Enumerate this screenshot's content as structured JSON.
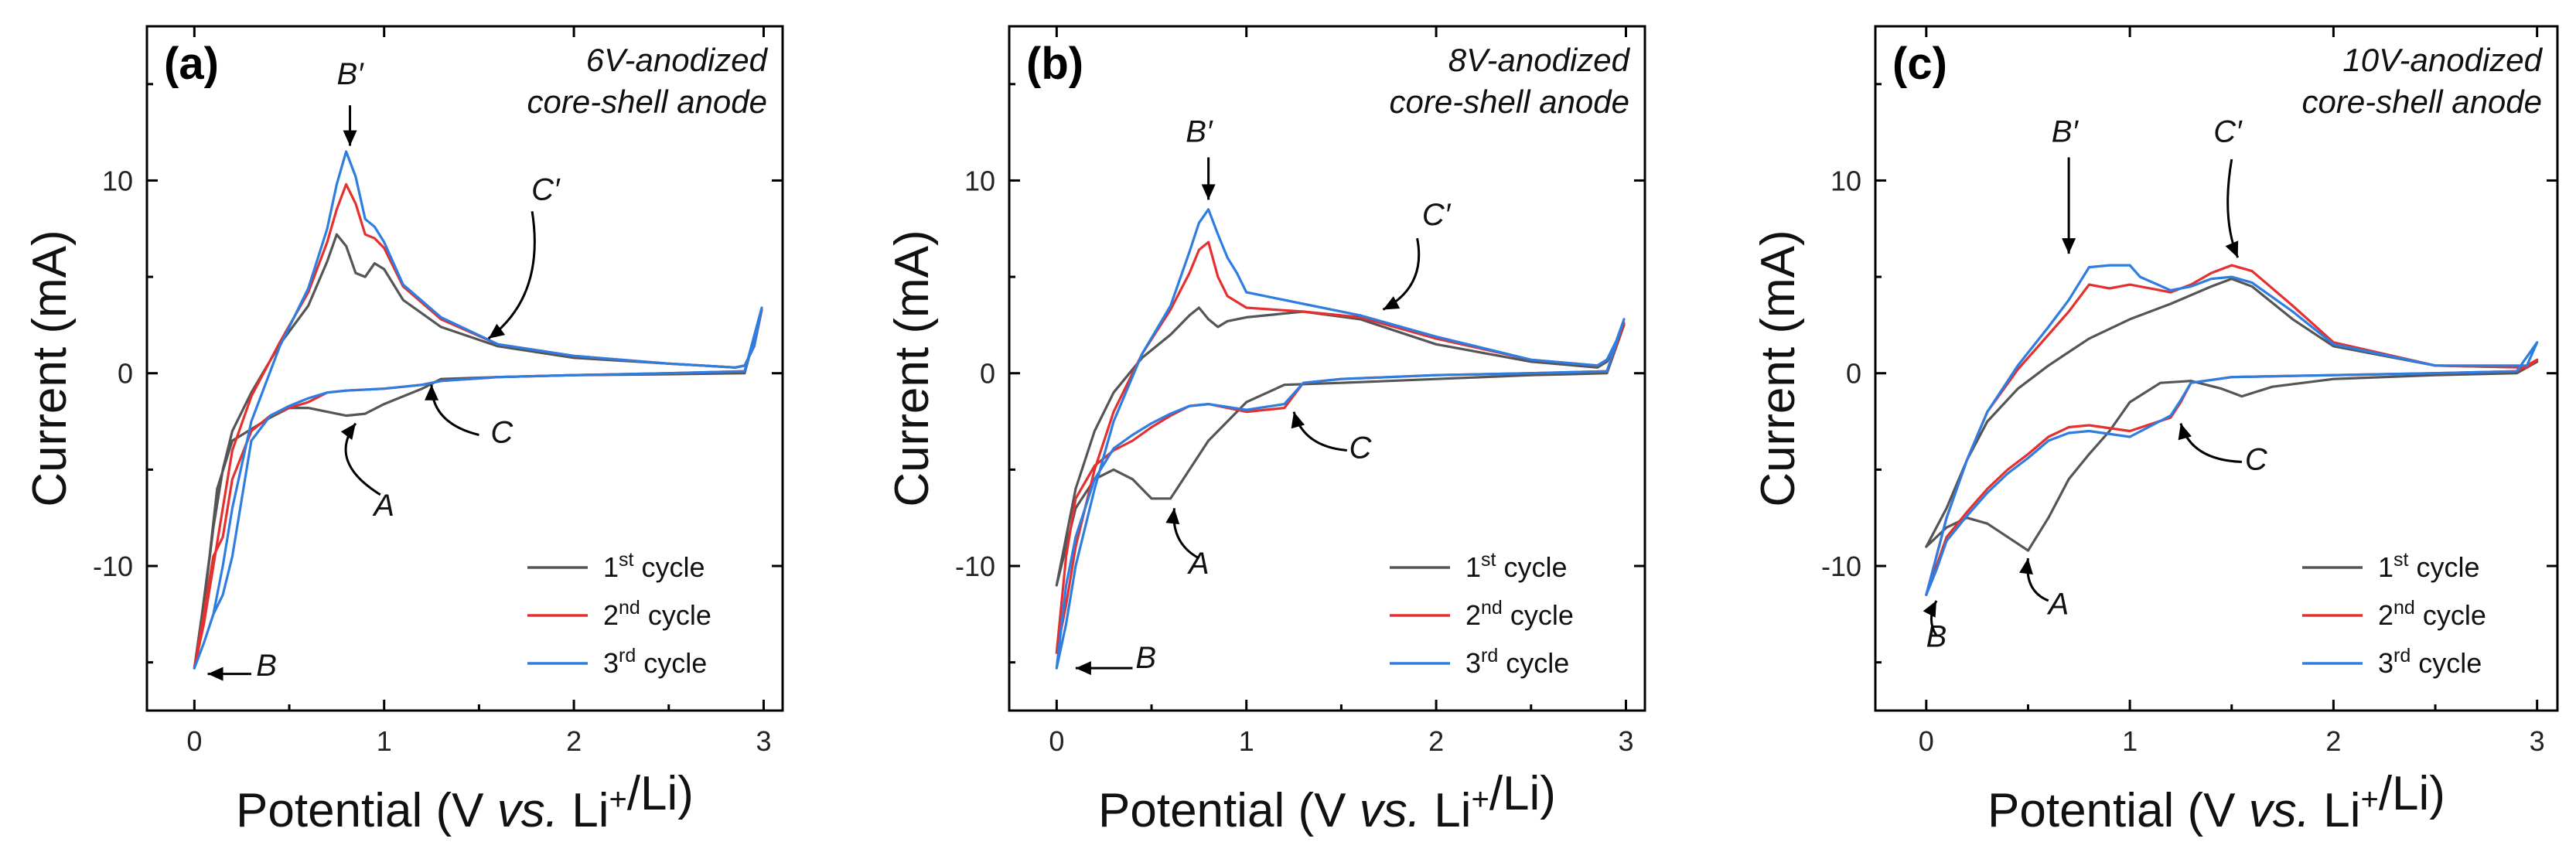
{
  "chart_data": [
    {
      "type": "line",
      "panel_label": "(a)",
      "title_lines": [
        "6V-anodized",
        "core-shell anode"
      ],
      "xlabel": "Potential (V vs. Li+/Li)",
      "ylabel": "Current (mA)",
      "xlim": [
        -0.25,
        3.1
      ],
      "ylim": [
        -17.5,
        18
      ],
      "xticks": [
        0,
        1,
        2,
        3
      ],
      "yticks": [
        -10,
        0,
        10
      ],
      "legend_position": "bottom-right",
      "series": [
        {
          "name": "1st cycle",
          "color": "#555555",
          "x": [
            0.0,
            0.05,
            0.1,
            0.15,
            0.2,
            0.3,
            0.45,
            0.6,
            0.7,
            0.75,
            0.8,
            0.85,
            0.9,
            0.95,
            1.0,
            1.1,
            1.3,
            1.6,
            2.0,
            2.5,
            2.85,
            2.9,
            2.95,
            2.99,
            2.9,
            2.5,
            2.0,
            1.6,
            1.3,
            1.2,
            1.0,
            0.9,
            0.8,
            0.7,
            0.6,
            0.5,
            0.4,
            0.3,
            0.2,
            0.12,
            0.08,
            0.04,
            0.0
          ],
          "y": [
            -15.3,
            -12,
            -8.0,
            -5.0,
            -3.0,
            -1.0,
            1.5,
            3.5,
            5.8,
            7.2,
            6.6,
            5.2,
            5.0,
            5.7,
            5.4,
            3.8,
            2.4,
            1.4,
            0.8,
            0.5,
            0.3,
            0.4,
            1.4,
            3.3,
            0.0,
            -0.05,
            -0.1,
            -0.2,
            -0.3,
            -0.8,
            -1.6,
            -2.1,
            -2.2,
            -2.0,
            -1.8,
            -1.8,
            -2.3,
            -2.9,
            -3.5,
            -6.0,
            -9.5,
            -12.5,
            -15.3
          ]
        },
        {
          "name": "2nd cycle",
          "color": "#e53030",
          "x": [
            0.0,
            0.05,
            0.1,
            0.15,
            0.2,
            0.3,
            0.45,
            0.6,
            0.7,
            0.75,
            0.8,
            0.85,
            0.9,
            0.95,
            1.0,
            1.1,
            1.3,
            1.6,
            2.0,
            2.5,
            2.85,
            2.9,
            2.95,
            2.99,
            2.9,
            2.5,
            2.0,
            1.6,
            1.3,
            1.2,
            1.0,
            0.8,
            0.7,
            0.6,
            0.5,
            0.4,
            0.3,
            0.2,
            0.15,
            0.1,
            0.05,
            0.0
          ],
          "y": [
            -15.3,
            -13,
            -10.0,
            -7.0,
            -4.0,
            -1.2,
            1.6,
            4.2,
            6.8,
            8.5,
            9.8,
            8.8,
            7.2,
            7.0,
            6.5,
            4.5,
            2.8,
            1.5,
            0.9,
            0.5,
            0.3,
            0.4,
            1.4,
            3.3,
            0.1,
            0.0,
            -0.1,
            -0.2,
            -0.4,
            -0.6,
            -0.8,
            -0.9,
            -1.0,
            -1.5,
            -1.8,
            -2.2,
            -3.0,
            -5.5,
            -8.5,
            -9.5,
            -12.5,
            -15.3
          ]
        },
        {
          "name": "3rd cycle",
          "color": "#2e7de0",
          "x": [
            0.0,
            0.05,
            0.1,
            0.15,
            0.2,
            0.3,
            0.45,
            0.6,
            0.7,
            0.75,
            0.8,
            0.85,
            0.9,
            0.95,
            1.0,
            1.1,
            1.3,
            1.6,
            2.0,
            2.5,
            2.85,
            2.9,
            2.95,
            2.99,
            2.9,
            2.5,
            2.0,
            1.6,
            1.3,
            1.2,
            1.0,
            0.8,
            0.7,
            0.6,
            0.5,
            0.4,
            0.3,
            0.25,
            0.2,
            0.15,
            0.1,
            0.05,
            0.0
          ],
          "y": [
            -15.3,
            -14,
            -12.5,
            -10.0,
            -7.0,
            -2.5,
            1.4,
            4.4,
            7.5,
            9.8,
            11.5,
            10.2,
            8.0,
            7.6,
            6.8,
            4.6,
            2.9,
            1.5,
            0.9,
            0.5,
            0.3,
            0.4,
            1.4,
            3.4,
            0.1,
            0.0,
            -0.1,
            -0.2,
            -0.4,
            -0.6,
            -0.8,
            -0.9,
            -1.0,
            -1.3,
            -1.7,
            -2.2,
            -3.5,
            -6.5,
            -9.5,
            -11.5,
            -12.5,
            -14.0,
            -15.3
          ]
        }
      ],
      "annotations": [
        {
          "text": "B′",
          "x": 0.82,
          "y": 15.0
        },
        {
          "text": "C′",
          "x": 1.85,
          "y": 9.0
        },
        {
          "text": "C",
          "x": 1.62,
          "y": -3.6
        },
        {
          "text": "A",
          "x": 1.0,
          "y": -7.4
        },
        {
          "text": "B",
          "x": 0.38,
          "y": -15.7
        }
      ]
    },
    {
      "type": "line",
      "panel_label": "(b)",
      "title_lines": [
        "8V-anodized",
        "core-shell anode"
      ],
      "xlabel": "Potential (V vs. Li+/Li)",
      "ylabel": "Current (mA)",
      "xlim": [
        -0.25,
        3.1
      ],
      "ylim": [
        -17.5,
        18
      ],
      "xticks": [
        0,
        1,
        2,
        3
      ],
      "yticks": [
        -10,
        0,
        10
      ],
      "legend_position": "bottom-right",
      "series": [
        {
          "name": "1st cycle",
          "color": "#555555",
          "x": [
            0.0,
            0.05,
            0.1,
            0.2,
            0.3,
            0.45,
            0.6,
            0.7,
            0.75,
            0.8,
            0.85,
            0.9,
            1.0,
            1.3,
            1.6,
            2.0,
            2.5,
            2.85,
            2.9,
            2.95,
            2.99,
            2.9,
            2.5,
            2.0,
            1.5,
            1.2,
            1.0,
            0.8,
            0.7,
            0.6,
            0.5,
            0.4,
            0.3,
            0.2,
            0.1,
            0.05,
            0.0
          ],
          "y": [
            -11.0,
            -8.5,
            -6.0,
            -3.0,
            -1.0,
            0.8,
            2.0,
            3.0,
            3.4,
            2.8,
            2.4,
            2.7,
            2.9,
            3.2,
            2.8,
            1.5,
            0.6,
            0.3,
            0.6,
            1.5,
            2.5,
            0.0,
            -0.1,
            -0.3,
            -0.5,
            -0.6,
            -1.5,
            -3.5,
            -5.0,
            -6.5,
            -6.5,
            -5.5,
            -5.0,
            -5.5,
            -7.0,
            -9.0,
            -11.0
          ]
        },
        {
          "name": "2nd cycle",
          "color": "#e53030",
          "x": [
            0.0,
            0.05,
            0.1,
            0.2,
            0.3,
            0.45,
            0.6,
            0.7,
            0.75,
            0.8,
            0.85,
            0.9,
            1.0,
            1.3,
            1.6,
            2.0,
            2.5,
            2.85,
            2.9,
            2.95,
            2.99,
            2.9,
            2.5,
            2.0,
            1.5,
            1.3,
            1.2,
            1.0,
            0.8,
            0.7,
            0.6,
            0.5,
            0.4,
            0.3,
            0.2,
            0.1,
            0.05,
            0.0
          ],
          "y": [
            -14.5,
            -12,
            -9.0,
            -5.0,
            -2.0,
            1.0,
            3.3,
            5.2,
            6.4,
            6.8,
            5.0,
            4.0,
            3.4,
            3.2,
            2.9,
            1.8,
            0.7,
            0.4,
            0.7,
            1.6,
            2.6,
            0.1,
            0.0,
            -0.1,
            -0.3,
            -0.5,
            -1.8,
            -2.0,
            -1.6,
            -1.7,
            -2.2,
            -2.8,
            -3.5,
            -4.0,
            -4.8,
            -6.5,
            -9.5,
            -14.5
          ]
        },
        {
          "name": "3rd cycle",
          "color": "#2e7de0",
          "x": [
            0.0,
            0.05,
            0.1,
            0.2,
            0.3,
            0.45,
            0.6,
            0.7,
            0.75,
            0.8,
            0.85,
            0.9,
            0.95,
            1.0,
            1.3,
            1.6,
            2.0,
            2.5,
            2.85,
            2.9,
            2.95,
            2.99,
            2.9,
            2.5,
            2.0,
            1.5,
            1.3,
            1.2,
            1.0,
            0.8,
            0.7,
            0.6,
            0.5,
            0.4,
            0.3,
            0.2,
            0.1,
            0.05,
            0.0
          ],
          "y": [
            -15.3,
            -13,
            -10.0,
            -6.0,
            -2.5,
            1.0,
            3.5,
            6.3,
            7.8,
            8.5,
            7.2,
            6.0,
            5.2,
            4.2,
            3.6,
            3.0,
            1.9,
            0.7,
            0.4,
            0.7,
            1.7,
            2.8,
            0.1,
            0.0,
            -0.1,
            -0.3,
            -0.5,
            -1.6,
            -1.9,
            -1.6,
            -1.7,
            -2.1,
            -2.6,
            -3.2,
            -3.9,
            -5.5,
            -8.5,
            -11.0,
            -15.3
          ]
        }
      ],
      "annotations": [
        {
          "text": "B′",
          "x": 0.75,
          "y": 12.0
        },
        {
          "text": "C′",
          "x": 2.0,
          "y": 7.7
        },
        {
          "text": "C",
          "x": 1.6,
          "y": -4.4
        },
        {
          "text": "A",
          "x": 0.75,
          "y": -10.4
        },
        {
          "text": "B",
          "x": 0.47,
          "y": -15.3
        }
      ]
    },
    {
      "type": "line",
      "panel_label": "(c)",
      "title_lines": [
        "10V-anodized",
        "core-shell anode"
      ],
      "xlabel": "Potential (V vs. Li+/Li)",
      "ylabel": "Current (mA)",
      "xlim": [
        -0.25,
        3.1
      ],
      "ylim": [
        -17.5,
        18
      ],
      "xticks": [
        0,
        1,
        2,
        3
      ],
      "yticks": [
        -10,
        0,
        10
      ],
      "legend_position": "bottom-right",
      "series": [
        {
          "name": "1st cycle",
          "color": "#555555",
          "x": [
            0.0,
            0.1,
            0.2,
            0.3,
            0.45,
            0.6,
            0.8,
            1.0,
            1.2,
            1.4,
            1.5,
            1.6,
            1.8,
            2.0,
            2.5,
            2.95,
            3.0,
            2.9,
            2.5,
            2.0,
            1.7,
            1.55,
            1.45,
            1.3,
            1.15,
            1.0,
            0.9,
            0.8,
            0.7,
            0.6,
            0.5,
            0.4,
            0.3,
            0.2,
            0.1,
            0.0
          ],
          "y": [
            -9.0,
            -7.0,
            -4.5,
            -2.5,
            -0.8,
            0.4,
            1.8,
            2.8,
            3.6,
            4.5,
            4.9,
            4.5,
            2.8,
            1.4,
            0.4,
            0.3,
            0.6,
            0.0,
            -0.1,
            -0.3,
            -0.7,
            -1.2,
            -0.8,
            -0.4,
            -0.5,
            -1.5,
            -3.0,
            -4.2,
            -5.5,
            -7.5,
            -9.2,
            -8.5,
            -7.8,
            -7.5,
            -8.0,
            -9.0
          ]
        },
        {
          "name": "2nd cycle",
          "color": "#e53030",
          "x": [
            0.0,
            0.05,
            0.1,
            0.2,
            0.3,
            0.45,
            0.6,
            0.7,
            0.8,
            0.9,
            1.0,
            1.2,
            1.3,
            1.4,
            1.5,
            1.6,
            1.8,
            2.0,
            2.5,
            2.95,
            3.0,
            2.9,
            2.5,
            2.0,
            1.5,
            1.3,
            1.25,
            1.2,
            1.0,
            0.8,
            0.7,
            0.6,
            0.5,
            0.4,
            0.3,
            0.2,
            0.1,
            0.05,
            0.0
          ],
          "y": [
            -11.5,
            -9.5,
            -7.5,
            -4.5,
            -2.0,
            0.2,
            2.0,
            3.2,
            4.6,
            4.4,
            4.6,
            4.2,
            4.6,
            5.2,
            5.6,
            5.3,
            3.5,
            1.6,
            0.4,
            0.3,
            0.7,
            0.1,
            0.0,
            -0.1,
            -0.2,
            -0.5,
            -1.5,
            -2.3,
            -3.0,
            -2.7,
            -2.8,
            -3.3,
            -4.2,
            -5.0,
            -6.0,
            -7.2,
            -8.5,
            -10.0,
            -11.5
          ]
        },
        {
          "name": "3rd cycle",
          "color": "#2e7de0",
          "x": [
            0.0,
            0.05,
            0.1,
            0.2,
            0.3,
            0.45,
            0.6,
            0.7,
            0.8,
            0.9,
            1.0,
            1.05,
            1.2,
            1.3,
            1.4,
            1.5,
            1.6,
            1.8,
            2.0,
            2.5,
            2.95,
            3.0,
            2.9,
            2.5,
            2.0,
            1.5,
            1.3,
            1.25,
            1.2,
            1.0,
            0.8,
            0.7,
            0.6,
            0.5,
            0.4,
            0.3,
            0.2,
            0.1,
            0.05,
            0.0
          ],
          "y": [
            -11.5,
            -9.5,
            -7.5,
            -4.5,
            -2.0,
            0.4,
            2.4,
            3.8,
            5.5,
            5.6,
            5.6,
            5.0,
            4.3,
            4.5,
            4.9,
            5.0,
            4.7,
            3.2,
            1.5,
            0.4,
            0.4,
            1.6,
            0.1,
            0.0,
            -0.1,
            -0.2,
            -0.5,
            -1.4,
            -2.2,
            -3.3,
            -3.0,
            -3.1,
            -3.5,
            -4.4,
            -5.2,
            -6.2,
            -7.4,
            -8.7,
            -10.2,
            -11.5
          ]
        }
      ],
      "annotations": [
        {
          "text": "B′",
          "x": 0.68,
          "y": 12.0
        },
        {
          "text": "C′",
          "x": 1.48,
          "y": 12.0
        },
        {
          "text": "C",
          "x": 1.62,
          "y": -5.0
        },
        {
          "text": "A",
          "x": 0.65,
          "y": -12.5
        },
        {
          "text": "B",
          "x": 0.05,
          "y": -14.2
        }
      ]
    }
  ]
}
